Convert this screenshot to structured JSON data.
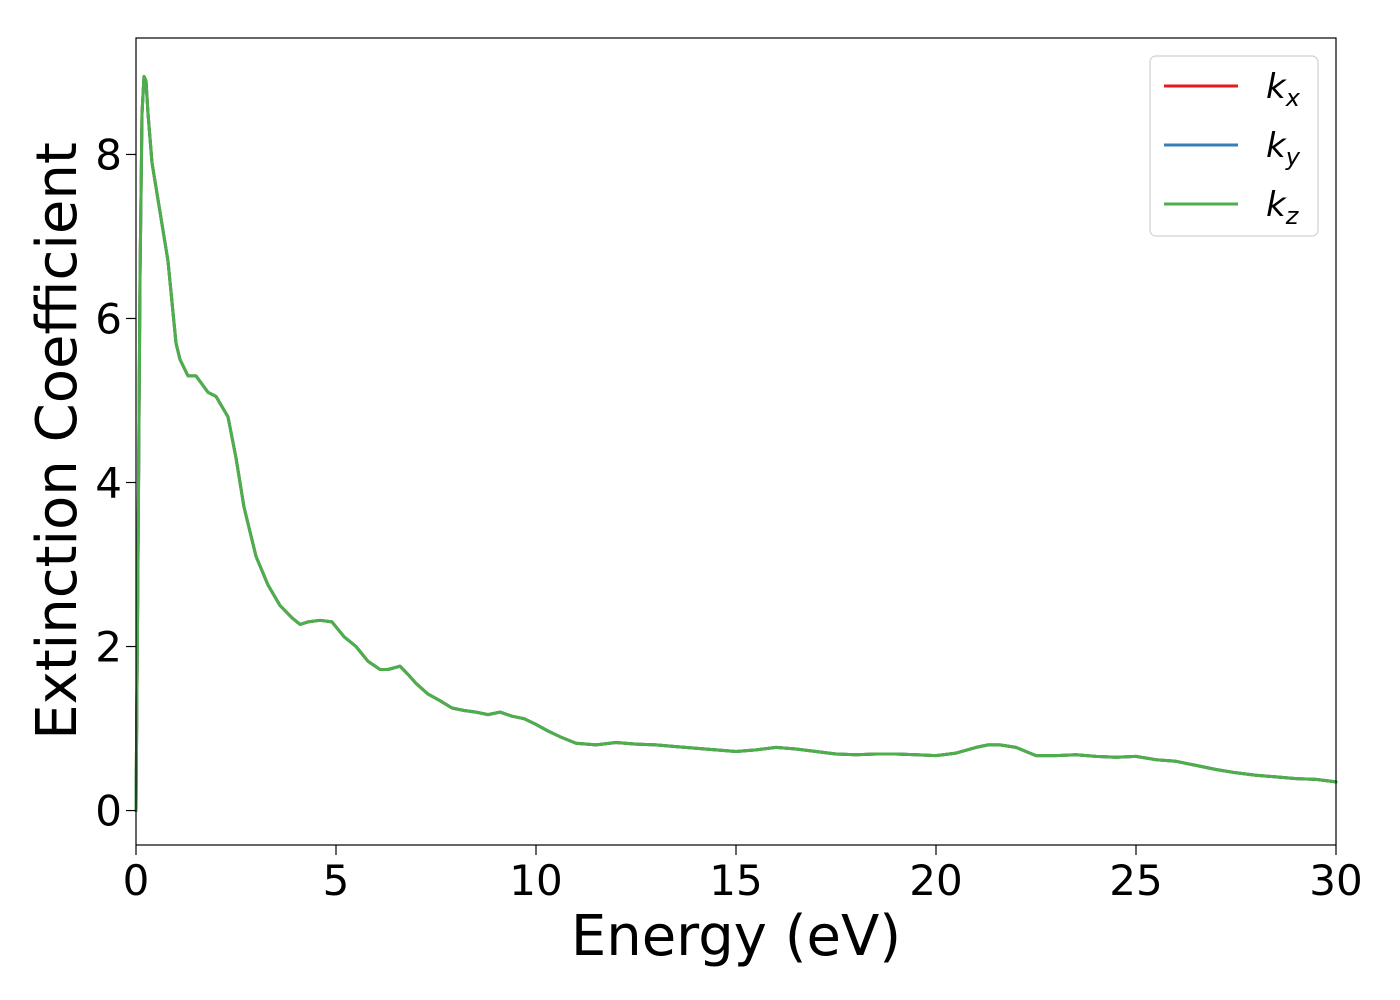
{
  "chart_data": {
    "type": "line",
    "title": "",
    "xlabel": "Energy (eV)",
    "ylabel": "Extinction Coefficient",
    "xlim": [
      0,
      30
    ],
    "ylim": [
      -0.42,
      9.42
    ],
    "xticks": [
      0,
      5,
      10,
      15,
      20,
      25,
      30
    ],
    "yticks": [
      0,
      2,
      4,
      6,
      8
    ],
    "grid": false,
    "legend_position": "top-right",
    "series": [
      {
        "name": "k",
        "name_subscript": "x",
        "color": "#e41a1c",
        "x": [
          0,
          0.05,
          0.1,
          0.15,
          0.2,
          0.25,
          0.3,
          0.4,
          0.5,
          0.6,
          0.8,
          1.0,
          1.1,
          1.3,
          1.5,
          1.8,
          2.0,
          2.3,
          2.5,
          2.7,
          3.0,
          3.3,
          3.6,
          3.9,
          4.1,
          4.3,
          4.6,
          4.9,
          5.2,
          5.5,
          5.8,
          6.1,
          6.3,
          6.6,
          6.8,
          7.0,
          7.3,
          7.6,
          7.9,
          8.2,
          8.5,
          8.8,
          9.1,
          9.4,
          9.7,
          10.0,
          10.3,
          10.6,
          11.0,
          11.5,
          12.0,
          12.5,
          13.0,
          13.5,
          14.0,
          14.5,
          15.0,
          15.5,
          16.0,
          16.5,
          17.0,
          17.5,
          18.0,
          18.5,
          19.0,
          19.5,
          20.0,
          20.5,
          21.0,
          21.3,
          21.6,
          22.0,
          22.5,
          23.0,
          23.5,
          24.0,
          24.5,
          25.0,
          25.5,
          26.0,
          26.5,
          27.0,
          27.5,
          28.0,
          28.5,
          29.0,
          29.5,
          30.0
        ],
        "y": [
          0,
          3.0,
          6.5,
          8.5,
          8.95,
          8.9,
          8.5,
          7.9,
          7.6,
          7.3,
          6.7,
          5.7,
          5.5,
          5.3,
          5.3,
          5.1,
          5.05,
          4.8,
          4.3,
          3.7,
          3.1,
          2.75,
          2.5,
          2.35,
          2.27,
          2.3,
          2.32,
          2.3,
          2.12,
          2.0,
          1.82,
          1.72,
          1.72,
          1.76,
          1.66,
          1.55,
          1.42,
          1.34,
          1.25,
          1.22,
          1.2,
          1.17,
          1.2,
          1.15,
          1.12,
          1.05,
          0.97,
          0.9,
          0.82,
          0.8,
          0.83,
          0.81,
          0.8,
          0.78,
          0.76,
          0.74,
          0.72,
          0.74,
          0.77,
          0.75,
          0.72,
          0.69,
          0.68,
          0.69,
          0.69,
          0.68,
          0.67,
          0.7,
          0.77,
          0.8,
          0.8,
          0.77,
          0.67,
          0.67,
          0.68,
          0.66,
          0.65,
          0.66,
          0.62,
          0.6,
          0.55,
          0.5,
          0.46,
          0.43,
          0.41,
          0.39,
          0.38,
          0.35
        ]
      },
      {
        "name": "k",
        "name_subscript": "y",
        "color": "#377eb8",
        "x": [
          0,
          0.05,
          0.1,
          0.15,
          0.2,
          0.25,
          0.3,
          0.4,
          0.5,
          0.6,
          0.8,
          1.0,
          1.1,
          1.3,
          1.5,
          1.8,
          2.0,
          2.3,
          2.5,
          2.7,
          3.0,
          3.3,
          3.6,
          3.9,
          4.1,
          4.3,
          4.6,
          4.9,
          5.2,
          5.5,
          5.8,
          6.1,
          6.3,
          6.6,
          6.8,
          7.0,
          7.3,
          7.6,
          7.9,
          8.2,
          8.5,
          8.8,
          9.1,
          9.4,
          9.7,
          10.0,
          10.3,
          10.6,
          11.0,
          11.5,
          12.0,
          12.5,
          13.0,
          13.5,
          14.0,
          14.5,
          15.0,
          15.5,
          16.0,
          16.5,
          17.0,
          17.5,
          18.0,
          18.5,
          19.0,
          19.5,
          20.0,
          20.5,
          21.0,
          21.3,
          21.6,
          22.0,
          22.5,
          23.0,
          23.5,
          24.0,
          24.5,
          25.0,
          25.5,
          26.0,
          26.5,
          27.0,
          27.5,
          28.0,
          28.5,
          29.0,
          29.5,
          30.0
        ],
        "y": [
          0,
          3.0,
          6.5,
          8.5,
          8.95,
          8.9,
          8.5,
          7.9,
          7.6,
          7.3,
          6.7,
          5.7,
          5.5,
          5.3,
          5.3,
          5.1,
          5.05,
          4.8,
          4.3,
          3.7,
          3.1,
          2.75,
          2.5,
          2.35,
          2.27,
          2.3,
          2.32,
          2.3,
          2.12,
          2.0,
          1.82,
          1.72,
          1.72,
          1.76,
          1.66,
          1.55,
          1.42,
          1.34,
          1.25,
          1.22,
          1.2,
          1.17,
          1.2,
          1.15,
          1.12,
          1.05,
          0.97,
          0.9,
          0.82,
          0.8,
          0.83,
          0.81,
          0.8,
          0.78,
          0.76,
          0.74,
          0.72,
          0.74,
          0.77,
          0.75,
          0.72,
          0.69,
          0.68,
          0.69,
          0.69,
          0.68,
          0.67,
          0.7,
          0.77,
          0.8,
          0.8,
          0.77,
          0.67,
          0.67,
          0.68,
          0.66,
          0.65,
          0.66,
          0.62,
          0.6,
          0.55,
          0.5,
          0.46,
          0.43,
          0.41,
          0.39,
          0.38,
          0.35
        ]
      },
      {
        "name": "k",
        "name_subscript": "z",
        "color": "#4daf4a",
        "x": [
          0,
          0.05,
          0.1,
          0.15,
          0.2,
          0.25,
          0.3,
          0.4,
          0.5,
          0.6,
          0.8,
          1.0,
          1.1,
          1.3,
          1.5,
          1.8,
          2.0,
          2.3,
          2.5,
          2.7,
          3.0,
          3.3,
          3.6,
          3.9,
          4.1,
          4.3,
          4.6,
          4.9,
          5.2,
          5.5,
          5.8,
          6.1,
          6.3,
          6.6,
          6.8,
          7.0,
          7.3,
          7.6,
          7.9,
          8.2,
          8.5,
          8.8,
          9.1,
          9.4,
          9.7,
          10.0,
          10.3,
          10.6,
          11.0,
          11.5,
          12.0,
          12.5,
          13.0,
          13.5,
          14.0,
          14.5,
          15.0,
          15.5,
          16.0,
          16.5,
          17.0,
          17.5,
          18.0,
          18.5,
          19.0,
          19.5,
          20.0,
          20.5,
          21.0,
          21.3,
          21.6,
          22.0,
          22.5,
          23.0,
          23.5,
          24.0,
          24.5,
          25.0,
          25.5,
          26.0,
          26.5,
          27.0,
          27.5,
          28.0,
          28.5,
          29.0,
          29.5,
          30.0
        ],
        "y": [
          0,
          3.0,
          6.5,
          8.5,
          8.95,
          8.9,
          8.5,
          7.9,
          7.6,
          7.3,
          6.7,
          5.7,
          5.5,
          5.3,
          5.3,
          5.1,
          5.05,
          4.8,
          4.3,
          3.7,
          3.1,
          2.75,
          2.5,
          2.35,
          2.27,
          2.3,
          2.32,
          2.3,
          2.12,
          2.0,
          1.82,
          1.72,
          1.72,
          1.76,
          1.66,
          1.55,
          1.42,
          1.34,
          1.25,
          1.22,
          1.2,
          1.17,
          1.2,
          1.15,
          1.12,
          1.05,
          0.97,
          0.9,
          0.82,
          0.8,
          0.83,
          0.81,
          0.8,
          0.78,
          0.76,
          0.74,
          0.72,
          0.74,
          0.77,
          0.75,
          0.72,
          0.69,
          0.68,
          0.69,
          0.69,
          0.68,
          0.67,
          0.7,
          0.77,
          0.8,
          0.8,
          0.77,
          0.67,
          0.67,
          0.68,
          0.66,
          0.65,
          0.66,
          0.62,
          0.6,
          0.55,
          0.5,
          0.46,
          0.43,
          0.41,
          0.39,
          0.38,
          0.35
        ]
      }
    ]
  }
}
